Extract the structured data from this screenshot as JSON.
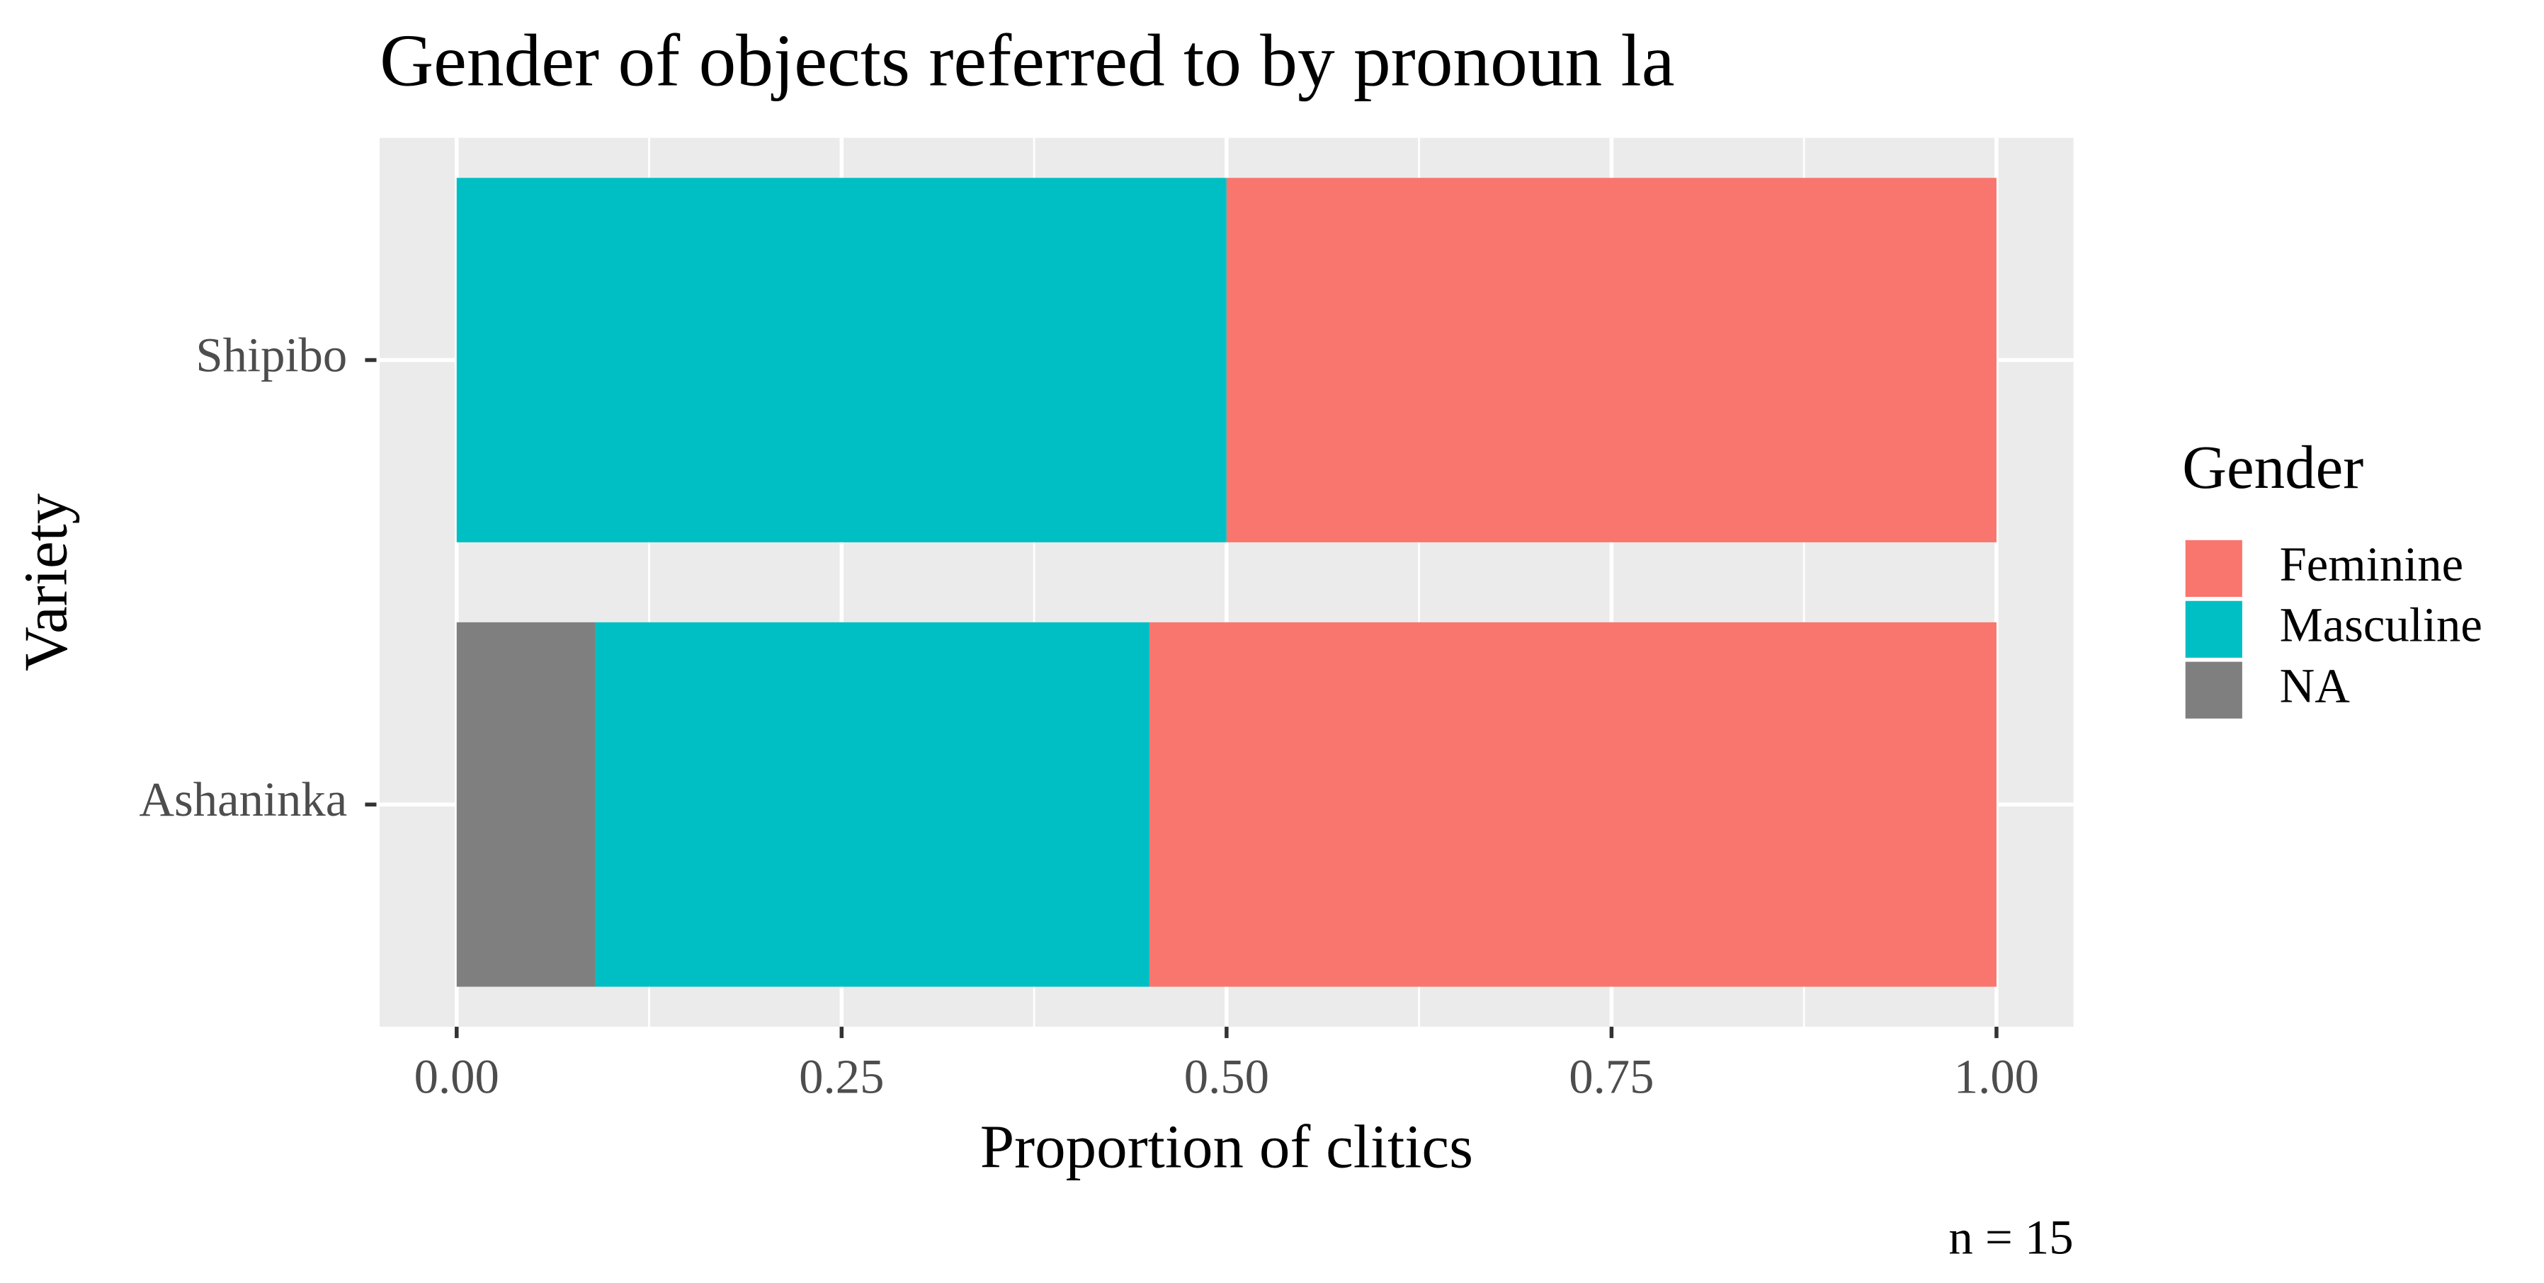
{
  "chart_data": {
    "type": "stacked-barh",
    "title": "Gender of objects referred to by pronoun la",
    "x_label": "Proportion of clitics",
    "y_label": "Variety",
    "caption": "n = 15",
    "legend_title": "Gender",
    "categories": [
      "Shipibo",
      "Ashaninka"
    ],
    "series": [
      {
        "name": "NA",
        "color": "#7f7f7f",
        "values": [
          0,
          0.09
        ]
      },
      {
        "name": "Masculine",
        "color": "#00bfc4",
        "values": [
          0.5,
          0.36
        ]
      },
      {
        "name": "Feminine",
        "color": "#f8766d",
        "values": [
          0.5,
          0.55
        ]
      }
    ],
    "legend_order": [
      "Feminine",
      "Masculine",
      "NA"
    ],
    "xlim": [
      -0.05,
      1.05
    ],
    "xticks": [
      {
        "value": 0,
        "label": "0.00"
      },
      {
        "value": 0.25,
        "label": "0.25"
      },
      {
        "value": 0.5,
        "label": "0.50"
      },
      {
        "value": 0.75,
        "label": "0.75"
      },
      {
        "value": 1,
        "label": "1.00"
      }
    ],
    "grid": true
  }
}
